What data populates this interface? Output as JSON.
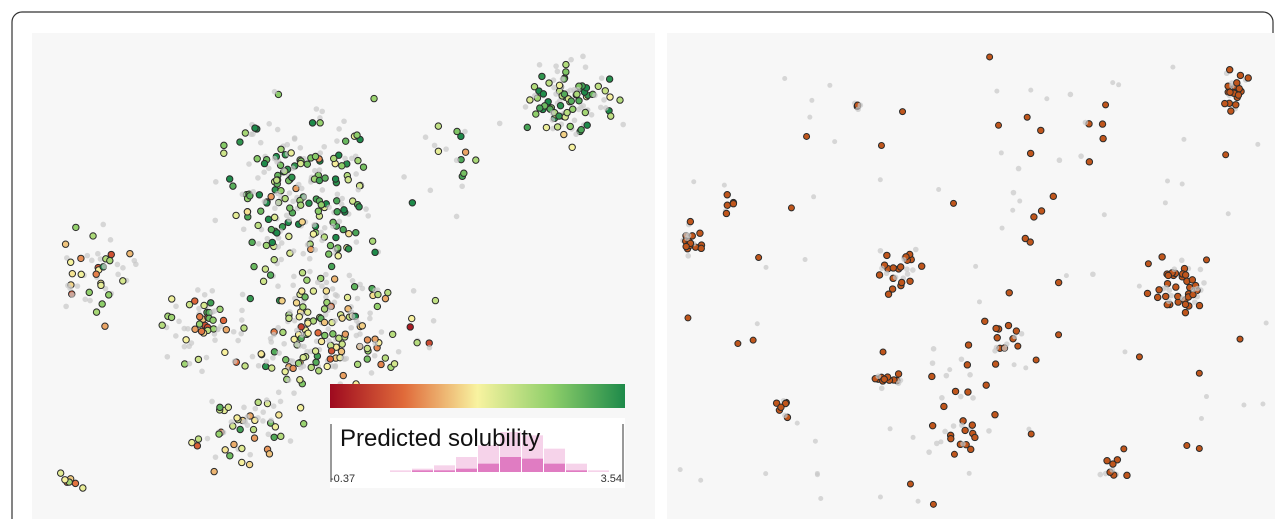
{
  "legend": {
    "title": "Predicted solubility",
    "min_label": "-0.37",
    "max_label": "3.54",
    "colors": [
      "#9e0a1f",
      "#e06a3a",
      "#f8f3a0",
      "#8fcf6a",
      "#1e8a4a"
    ],
    "histogram_all": [
      1,
      2,
      4,
      9,
      16,
      24,
      22,
      14,
      5,
      1
    ],
    "histogram_selected": [
      0,
      1,
      1,
      2,
      5,
      9,
      8,
      5,
      1,
      0
    ]
  }
}
